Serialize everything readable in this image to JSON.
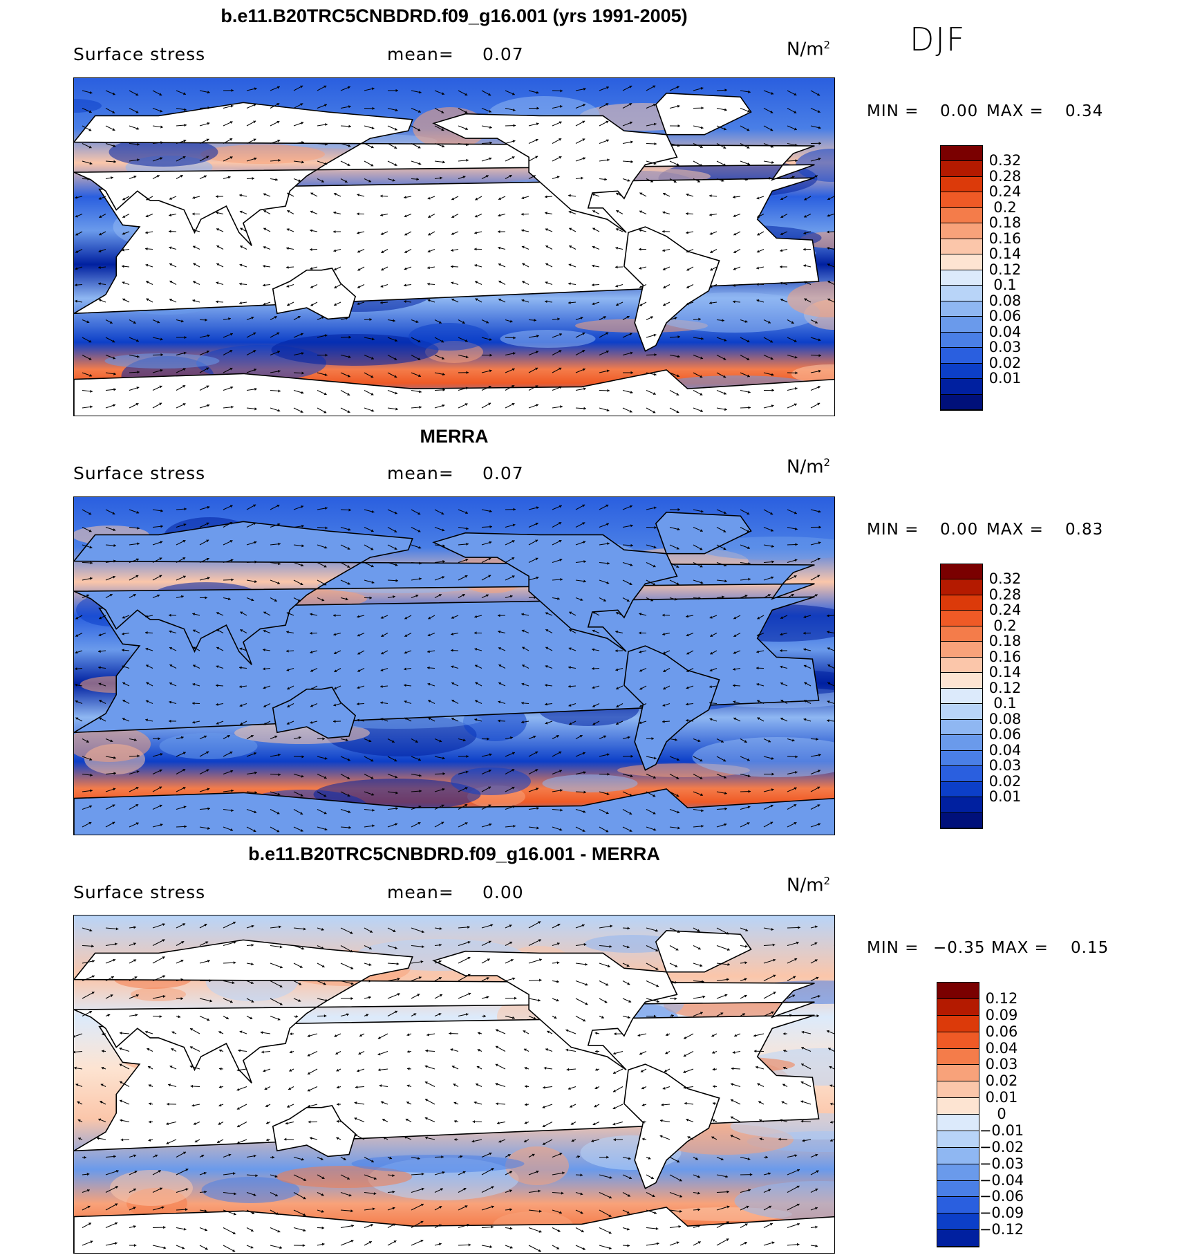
{
  "season": "DJF",
  "colors": {
    "pos": [
      "#7a0000",
      "#b41a00",
      "#dc3a0a",
      "#ef5a26",
      "#f47c4a",
      "#f8a27a",
      "#fbc6aa",
      "#fde4d2"
    ],
    "neg": [
      "#dceafb",
      "#b8d4f8",
      "#8fb7f2",
      "#6a9aeb",
      "#4a7fe6",
      "#2a5fdf",
      "#0c3fc8",
      "#0020a0",
      "#00107a"
    ],
    "land": "#ffffff"
  },
  "panels": [
    {
      "title": "b.e11.B20TRC5CNBDRD.f09_g16.001 (yrs 1991-2005)",
      "variable": "Surface stress",
      "mean_label": "mean=",
      "mean_value": "0.07",
      "units_base": "N/m",
      "units_exp": "2",
      "min_label": "MIN =",
      "min_value": "0.00",
      "max_label": "MAX =",
      "max_value": "0.34",
      "map_type": "field",
      "colorbar_labels": [
        "0.32",
        "0.28",
        "0.24",
        "0.2",
        "0.18",
        "0.16",
        "0.14",
        "0.12",
        "0.1",
        "0.08",
        "0.06",
        "0.04",
        "0.03",
        "0.02",
        "0.01"
      ]
    },
    {
      "title": "MERRA",
      "variable": "Surface stress",
      "mean_label": "mean=",
      "mean_value": "0.07",
      "units_base": "N/m",
      "units_exp": "2",
      "min_label": "MIN =",
      "min_value": "0.00",
      "max_label": "MAX =",
      "max_value": "0.83",
      "map_type": "field",
      "colorbar_labels": [
        "0.32",
        "0.28",
        "0.24",
        "0.2",
        "0.18",
        "0.16",
        "0.14",
        "0.12",
        "0.1",
        "0.08",
        "0.06",
        "0.04",
        "0.03",
        "0.02",
        "0.01"
      ]
    },
    {
      "title": "b.e11.B20TRC5CNBDRD.f09_g16.001 - MERRA",
      "variable": "Surface stress",
      "mean_label": "mean=",
      "mean_value": "0.00",
      "units_base": "N/m",
      "units_exp": "2",
      "min_label": "MIN =",
      "min_value": "−0.35",
      "max_label": "MAX =",
      "max_value": "0.15",
      "map_type": "diff",
      "colorbar_labels": [
        "0.12",
        "0.09",
        "0.06",
        "0.04",
        "0.03",
        "0.02",
        "0.01",
        "0",
        "−0.01",
        "−0.02",
        "−0.03",
        "−0.04",
        "−0.06",
        "−0.09",
        "−0.12"
      ]
    }
  ]
}
